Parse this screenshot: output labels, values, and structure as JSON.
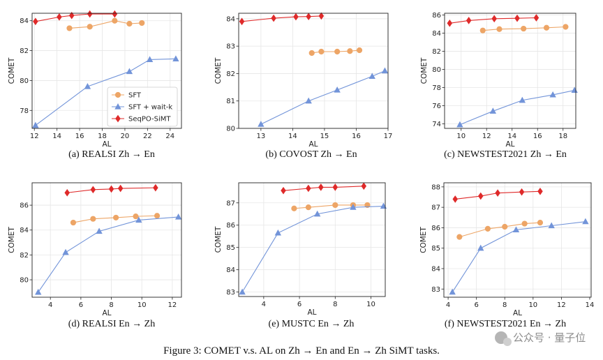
{
  "colors": {
    "sft": "#eda566",
    "waitk": "#7294d9",
    "seqpo": "#df2a2a"
  },
  "legend": [
    "SFT",
    "SFT + wait-k",
    "SeqPO-SiMT"
  ],
  "figure_caption": "Figure 3: COMET v.s. AL on Zh → En and En → Zh SiMT tasks.",
  "watermark": "公众号 · 量子位",
  "chart_data": [
    {
      "type": "line",
      "caption": "(a) REALSI Zh → En",
      "xlabel": "AL",
      "ylabel": "COMET",
      "xlim": [
        11.8,
        25.0
      ],
      "ylim": [
        76.8,
        84.5
      ],
      "xticks": [
        12,
        14,
        16,
        18,
        20,
        22,
        24
      ],
      "yticks": [
        78,
        80,
        82,
        84
      ],
      "legend": true,
      "series": [
        {
          "name": "SFT",
          "x": [
            15.1,
            16.9,
            19.1,
            20.4,
            21.5
          ],
          "y": [
            83.5,
            83.6,
            84.0,
            83.8,
            83.85
          ]
        },
        {
          "name": "SFT + wait-k",
          "x": [
            12.1,
            16.7,
            20.4,
            22.2,
            24.5
          ],
          "y": [
            77.0,
            79.6,
            80.6,
            81.4,
            81.45
          ]
        },
        {
          "name": "SeqPO-SiMT",
          "x": [
            12.1,
            14.2,
            15.3,
            16.9,
            19.1
          ],
          "y": [
            83.95,
            84.25,
            84.35,
            84.45,
            84.45
          ]
        }
      ]
    },
    {
      "type": "line",
      "caption": "(b) COVOST Zh → En",
      "xlabel": "AL",
      "ylabel": "COMET",
      "xlim": [
        12.3,
        17.0
      ],
      "ylim": [
        80.0,
        84.2
      ],
      "xticks": [
        13,
        14,
        15,
        16,
        17
      ],
      "yticks": [
        80,
        81,
        82,
        83,
        84
      ],
      "series": [
        {
          "name": "SFT",
          "x": [
            14.6,
            14.9,
            15.4,
            15.8,
            16.1
          ],
          "y": [
            82.75,
            82.8,
            82.8,
            82.82,
            82.85
          ]
        },
        {
          "name": "SFT + wait-k",
          "x": [
            13.0,
            14.5,
            15.4,
            16.5,
            16.9
          ],
          "y": [
            80.15,
            81.0,
            81.4,
            81.9,
            82.1
          ]
        },
        {
          "name": "SeqPO-SiMT",
          "x": [
            12.4,
            13.4,
            14.1,
            14.5,
            14.9
          ],
          "y": [
            83.9,
            84.02,
            84.07,
            84.08,
            84.1
          ]
        }
      ]
    },
    {
      "type": "line",
      "caption": "(c) NEWSTEST2021 Zh → En",
      "xlabel": "AL",
      "ylabel": "COMET",
      "xlim": [
        8.7,
        19.0
      ],
      "ylim": [
        73.5,
        86.2
      ],
      "xticks": [
        10,
        12,
        14,
        16,
        18
      ],
      "yticks": [
        74,
        76,
        78,
        80,
        82,
        84,
        86
      ],
      "series": [
        {
          "name": "SFT",
          "x": [
            11.7,
            13.0,
            14.9,
            16.7,
            18.2
          ],
          "y": [
            84.3,
            84.45,
            84.5,
            84.6,
            84.7
          ]
        },
        {
          "name": "SFT + wait-k",
          "x": [
            9.9,
            12.5,
            14.8,
            17.2,
            18.9
          ],
          "y": [
            73.9,
            75.4,
            76.6,
            77.2,
            77.7
          ]
        },
        {
          "name": "SeqPO-SiMT",
          "x": [
            9.1,
            10.6,
            12.6,
            14.4,
            15.9
          ],
          "y": [
            85.1,
            85.4,
            85.6,
            85.65,
            85.7
          ]
        }
      ]
    },
    {
      "type": "line",
      "caption": "(d) REALSI En → Zh",
      "xlabel": "AL",
      "ylabel": "COMET",
      "xlim": [
        2.8,
        12.6
      ],
      "ylim": [
        78.6,
        87.8
      ],
      "xticks": [
        4,
        6,
        8,
        10,
        12
      ],
      "yticks": [
        80,
        82,
        84,
        86
      ],
      "series": [
        {
          "name": "SFT",
          "x": [
            5.5,
            6.8,
            8.3,
            9.6,
            11.0
          ],
          "y": [
            84.6,
            84.9,
            85.0,
            85.1,
            85.15
          ]
        },
        {
          "name": "SFT + wait-k",
          "x": [
            3.2,
            5.0,
            7.2,
            9.8,
            12.4
          ],
          "y": [
            79.0,
            82.2,
            83.9,
            84.8,
            85.05
          ]
        },
        {
          "name": "SeqPO-SiMT",
          "x": [
            5.1,
            6.8,
            8.0,
            8.6,
            10.9
          ],
          "y": [
            87.0,
            87.25,
            87.3,
            87.35,
            87.4
          ]
        }
      ]
    },
    {
      "type": "line",
      "caption": "(e) MUSTC En → Zh",
      "xlabel": "AL",
      "ylabel": "COMET",
      "xlim": [
        2.6,
        10.8
      ],
      "ylim": [
        82.8,
        87.9
      ],
      "xticks": [
        4,
        6,
        8,
        10
      ],
      "yticks": [
        83,
        84,
        85,
        86,
        87
      ],
      "series": [
        {
          "name": "SFT",
          "x": [
            5.7,
            6.5,
            8.0,
            9.0,
            9.8
          ],
          "y": [
            86.75,
            86.8,
            86.9,
            86.9,
            86.9
          ]
        },
        {
          "name": "SFT + wait-k",
          "x": [
            2.8,
            4.8,
            7.0,
            9.0,
            10.7
          ],
          "y": [
            83.0,
            85.65,
            86.5,
            86.8,
            86.85
          ]
        },
        {
          "name": "SeqPO-SiMT",
          "x": [
            5.1,
            6.5,
            7.2,
            8.0,
            9.6
          ],
          "y": [
            87.55,
            87.65,
            87.7,
            87.7,
            87.75
          ]
        }
      ]
    },
    {
      "type": "line",
      "caption": "(f) NEWSTEST2021 En → Zh",
      "xlabel": "AL",
      "ylabel": "COMET",
      "xlim": [
        3.7,
        14.1
      ],
      "ylim": [
        82.6,
        88.2
      ],
      "xticks": [
        4,
        6,
        8,
        10,
        12,
        14
      ],
      "yticks": [
        83,
        84,
        85,
        86,
        87,
        88
      ],
      "series": [
        {
          "name": "SFT",
          "x": [
            4.8,
            6.8,
            8.0,
            9.4,
            10.5
          ],
          "y": [
            85.55,
            85.95,
            86.05,
            86.2,
            86.25
          ]
        },
        {
          "name": "SFT + wait-k",
          "x": [
            4.3,
            6.3,
            8.8,
            11.3,
            13.7
          ],
          "y": [
            82.85,
            85.0,
            85.9,
            86.1,
            86.3
          ]
        },
        {
          "name": "SeqPO-SiMT",
          "x": [
            4.5,
            6.3,
            7.5,
            9.2,
            10.5
          ],
          "y": [
            87.4,
            87.55,
            87.7,
            87.75,
            87.78
          ]
        }
      ]
    }
  ]
}
